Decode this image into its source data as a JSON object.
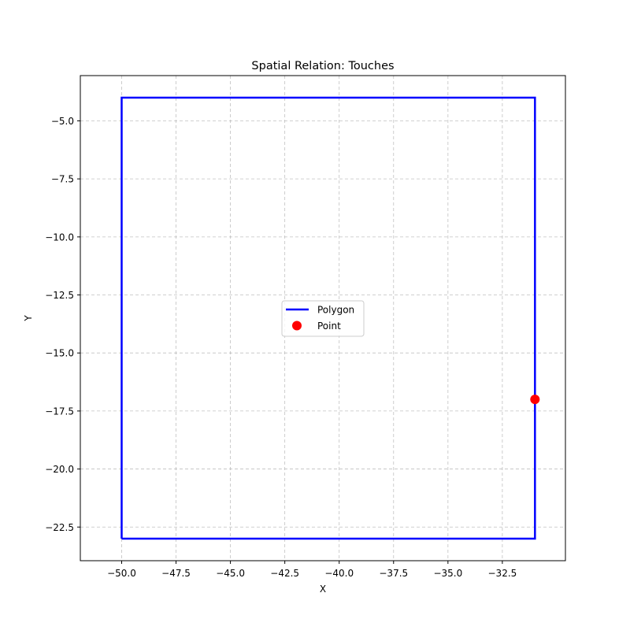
{
  "chart_data": {
    "type": "scatter",
    "title": "Spatial Relation: Touches",
    "xlabel": "X",
    "ylabel": "Y",
    "xlim": [
      -51.9,
      -29.6
    ],
    "ylim": [
      -23.95,
      -3.05
    ],
    "grid": true,
    "legend_position": "center",
    "xticks": [
      -50.0,
      -47.5,
      -45.0,
      -42.5,
      -40.0,
      -37.5,
      -35.0,
      -32.5
    ],
    "xtick_labels": [
      "−50.0",
      "−47.5",
      "−45.0",
      "−42.5",
      "−40.0",
      "−37.5",
      "−35.0",
      "−32.5"
    ],
    "yticks": [
      -5.0,
      -7.5,
      -10.0,
      -12.5,
      -15.0,
      -17.5,
      -20.0,
      -22.5
    ],
    "ytick_labels": [
      "−5.0",
      "−7.5",
      "−10.0",
      "−12.5",
      "−15.0",
      "−17.5",
      "−20.0",
      "−22.5"
    ],
    "series": [
      {
        "name": "Polygon",
        "kind": "line",
        "color": "#0000ff",
        "x": [
          -50,
          -31,
          -31,
          -50,
          -50
        ],
        "y": [
          -23,
          -23,
          -4,
          -4,
          -23
        ]
      },
      {
        "name": "Point",
        "kind": "scatter",
        "color": "#ff0000",
        "x": [
          -31
        ],
        "y": [
          -17
        ]
      }
    ]
  }
}
